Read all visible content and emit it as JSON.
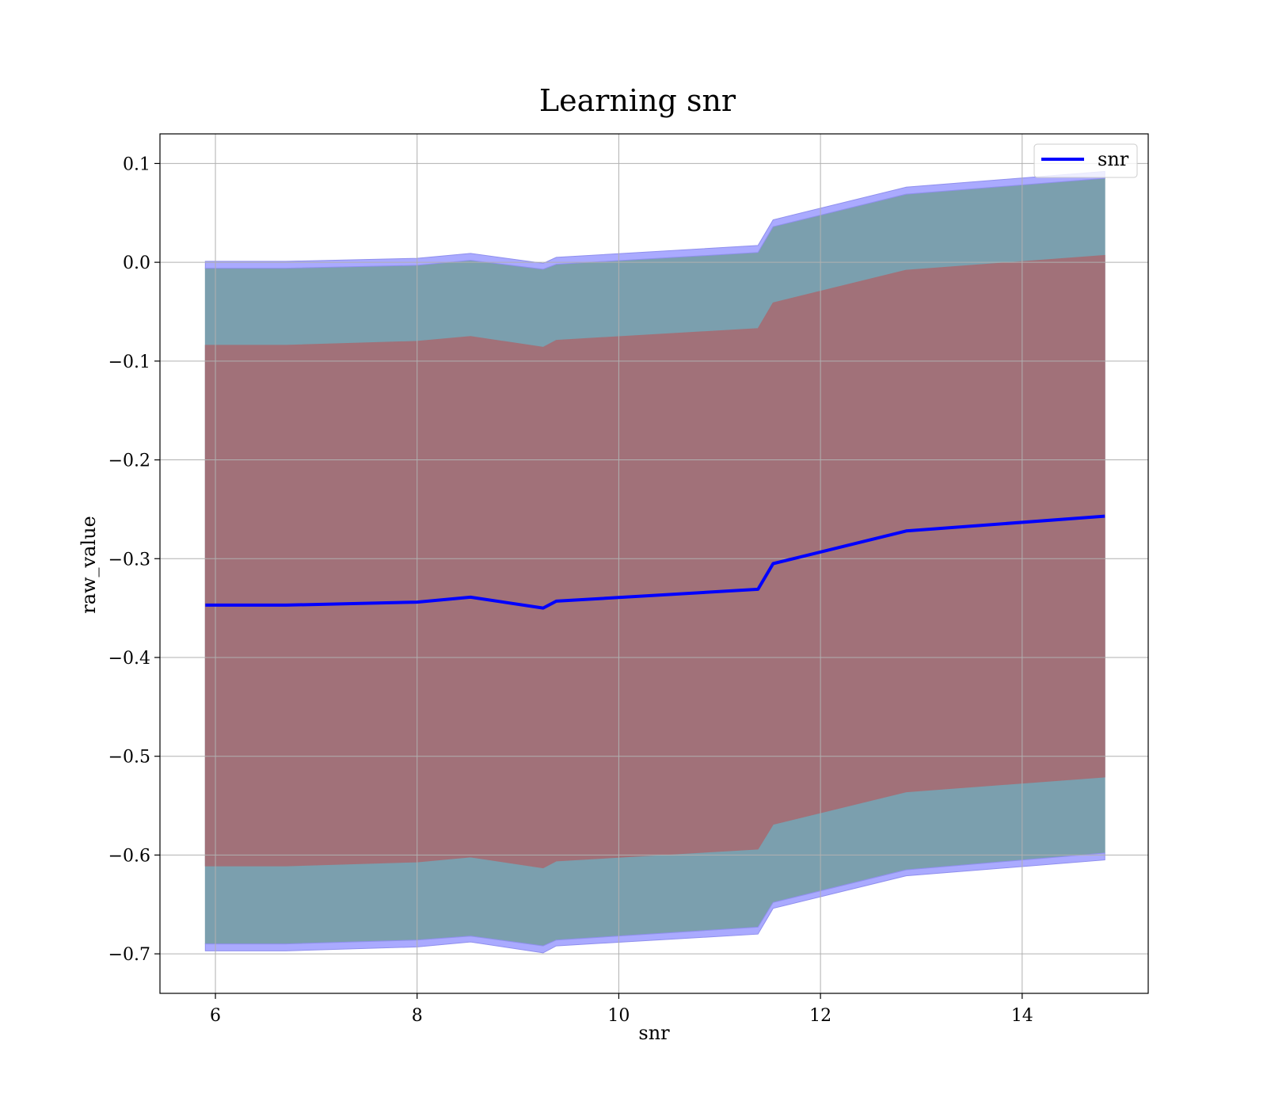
{
  "chart_data": {
    "type": "line",
    "title": "Learning snr",
    "xlabel": "snr",
    "ylabel": "raw_value",
    "xlim": [
      5.45,
      15.25
    ],
    "ylim": [
      -0.74,
      0.13
    ],
    "xticks": [
      6,
      8,
      10,
      12,
      14
    ],
    "yticks": [
      0.1,
      0.0,
      -0.1,
      -0.2,
      -0.3,
      -0.4,
      -0.5,
      -0.6,
      -0.7
    ],
    "xtick_labels": [
      "6",
      "8",
      "10",
      "12",
      "14"
    ],
    "ytick_labels": [
      "0.1",
      "0.0",
      "−0.1",
      "−0.2",
      "−0.3",
      "−0.4",
      "−0.5",
      "−0.6",
      "−0.7"
    ],
    "grid": true,
    "legend_position": "top-right",
    "x": [
      5.9,
      6.7,
      8.0,
      8.53,
      9.25,
      9.38,
      11.38,
      11.53,
      12.85,
      14.82
    ],
    "series": [
      {
        "name": "snr",
        "color": "#0000ff",
        "values": [
          -0.347,
          -0.347,
          -0.344,
          -0.339,
          -0.35,
          -0.343,
          -0.331,
          -0.305,
          -0.272,
          -0.257
        ]
      }
    ],
    "bands": [
      {
        "color": "#7b9fae",
        "upper": [
          -0.006,
          -0.006,
          -0.003,
          0.002,
          -0.007,
          -0.002,
          0.01,
          0.036,
          0.069,
          0.085
        ],
        "lower": [
          -0.69,
          -0.69,
          -0.686,
          -0.682,
          -0.692,
          -0.686,
          -0.673,
          -0.648,
          -0.615,
          -0.598
        ]
      },
      {
        "color": "#a17179",
        "upper": [
          -0.084,
          -0.084,
          -0.08,
          -0.075,
          -0.086,
          -0.079,
          -0.067,
          -0.041,
          -0.008,
          0.007
        ],
        "lower": [
          -0.611,
          -0.611,
          -0.607,
          -0.602,
          -0.613,
          -0.606,
          -0.594,
          -0.569,
          -0.536,
          -0.521
        ]
      }
    ],
    "edge_bands": [
      {
        "color": "#aaaaff",
        "upper": [
          0.001,
          0.001,
          0.004,
          0.009,
          -0.001,
          0.005,
          0.017,
          0.043,
          0.076,
          0.092
        ],
        "lower": [
          -0.006,
          -0.006,
          -0.003,
          0.002,
          -0.007,
          -0.002,
          0.01,
          0.036,
          0.069,
          0.085
        ]
      },
      {
        "color": "#aaaaff",
        "upper": [
          -0.69,
          -0.69,
          -0.686,
          -0.682,
          -0.692,
          -0.686,
          -0.673,
          -0.648,
          -0.615,
          -0.598
        ],
        "lower": [
          -0.697,
          -0.697,
          -0.693,
          -0.688,
          -0.699,
          -0.692,
          -0.68,
          -0.654,
          -0.621,
          -0.605
        ]
      }
    ]
  }
}
